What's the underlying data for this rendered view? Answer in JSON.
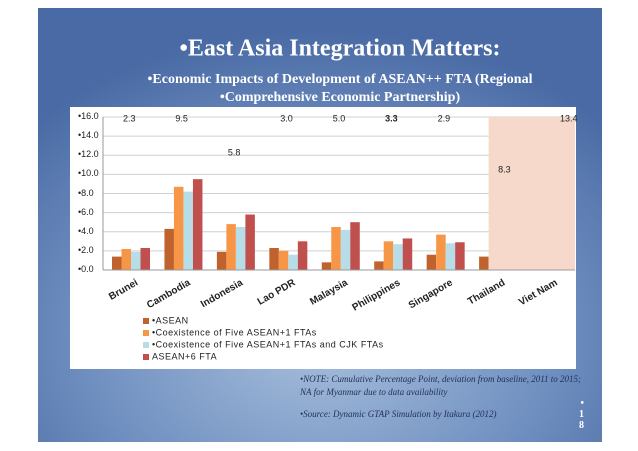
{
  "chart_data": {
    "type": "bar",
    "title": "•East Asia Integration Matters:",
    "subtitle": [
      "•Economic Impacts of Development of ASEAN++ FTA (Regional",
      "•Comprehensive Economic Partnership)"
    ],
    "categories": [
      "Brunei",
      "Cambodia",
      "Indonesia",
      "Lao PDR",
      "Malaysia",
      "Philippines",
      "Singapore",
      "Thailand",
      "Viet Nam"
    ],
    "series": [
      {
        "name": "•ASEAN",
        "color": "#c0622d",
        "values": [
          1.4,
          4.3,
          1.9,
          2.3,
          0.8,
          0.9,
          1.6,
          1.4,
          null
        ]
      },
      {
        "name": "•Coexistence of Five ASEAN+1 FTAs",
        "color": "#f79646",
        "values": [
          2.2,
          8.7,
          4.8,
          2.0,
          4.5,
          3.0,
          3.7,
          null,
          null
        ]
      },
      {
        "name": "•Coexistence of Five ASEAN+1 FTAs and CJK FTAs",
        "color": "#b7dee8",
        "values": [
          1.9,
          8.2,
          4.5,
          1.6,
          4.2,
          2.7,
          2.8,
          null,
          null
        ]
      },
      {
        "name": "ASEAN+6 FTA",
        "color": "#c0504d",
        "values": [
          2.3,
          9.5,
          5.8,
          3.0,
          5.0,
          3.3,
          2.9,
          8.3,
          13.4
        ],
        "value_labels": [
          "2.3",
          "9.5",
          "5.8",
          "3.0",
          "5.0",
          "3.3",
          "2.9",
          "8.3",
          "13.4"
        ]
      }
    ],
    "ylim": [
      0,
      16
    ],
    "yticks": [
      {
        "value": 0,
        "label": "•0.0"
      },
      {
        "value": 2,
        "label": "•2.0"
      },
      {
        "value": 4,
        "label": "•4.0"
      },
      {
        "value": 6,
        "label": "•6.0"
      },
      {
        "value": 8,
        "label": "•8.0"
      },
      {
        "value": 10,
        "label": "•10.0"
      },
      {
        "value": 12,
        "label": "•12.0"
      },
      {
        "value": 14,
        "label": "•14.0"
      },
      {
        "value": 16,
        "label": "•16.0"
      }
    ],
    "grid": true
  },
  "note": [
    "•NOTE: Cumulative Percentage Point, deviation from baseline, 2011 to 2015;",
    "NA for Myanmar due to data availability"
  ],
  "source": "•Source: Dynamic GTAP Simulation by Itakura (2012)",
  "page_number": "•18"
}
